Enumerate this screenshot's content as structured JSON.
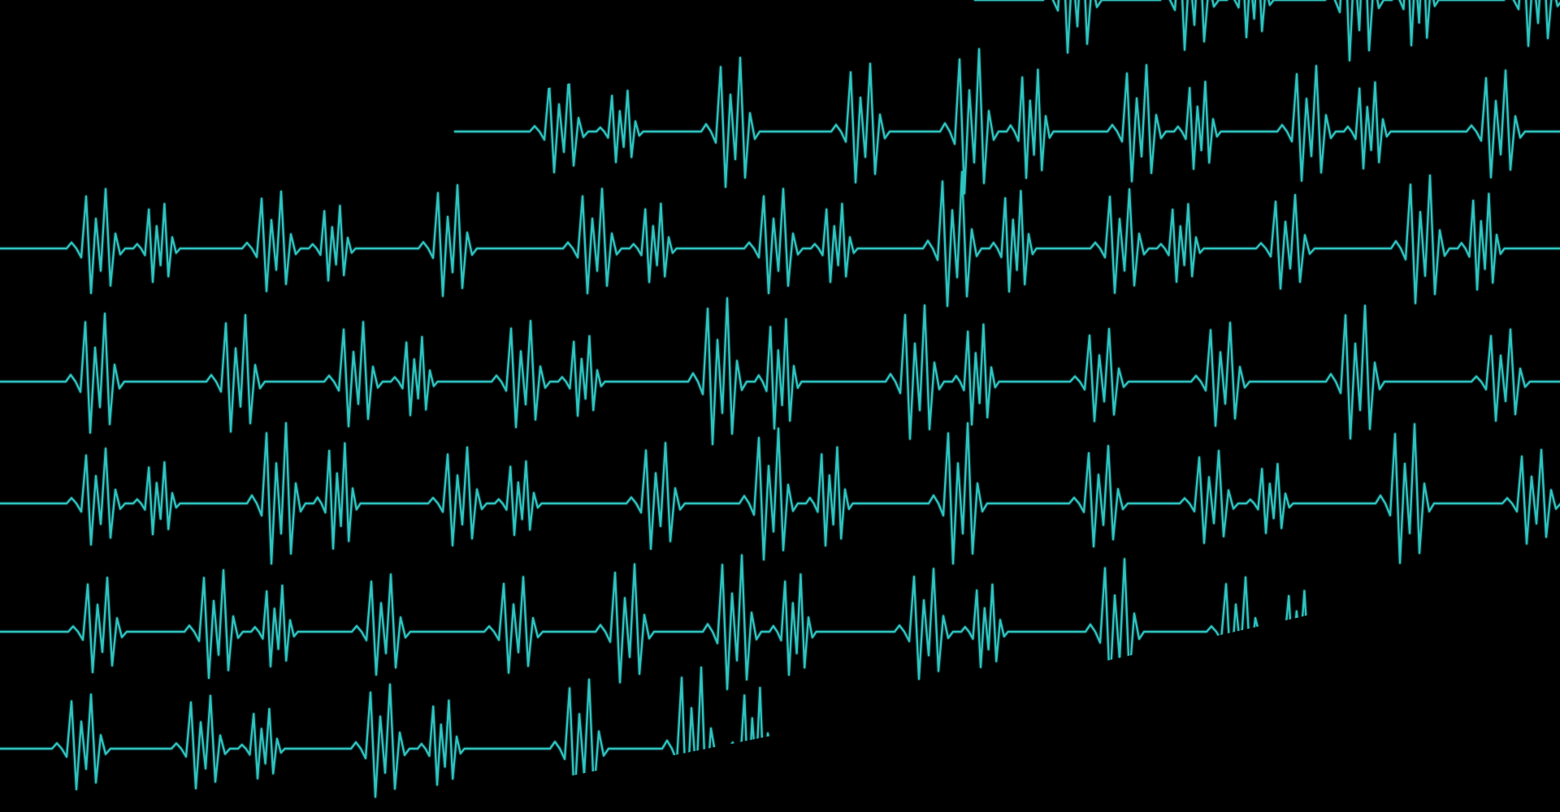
{
  "background_color": "#000000",
  "trace_color": "#2ec4c0",
  "trace_highlight_color": "#e8f4f4",
  "decorative_pattern": "ecg-heartbeat-lines",
  "trace_count": 6
}
